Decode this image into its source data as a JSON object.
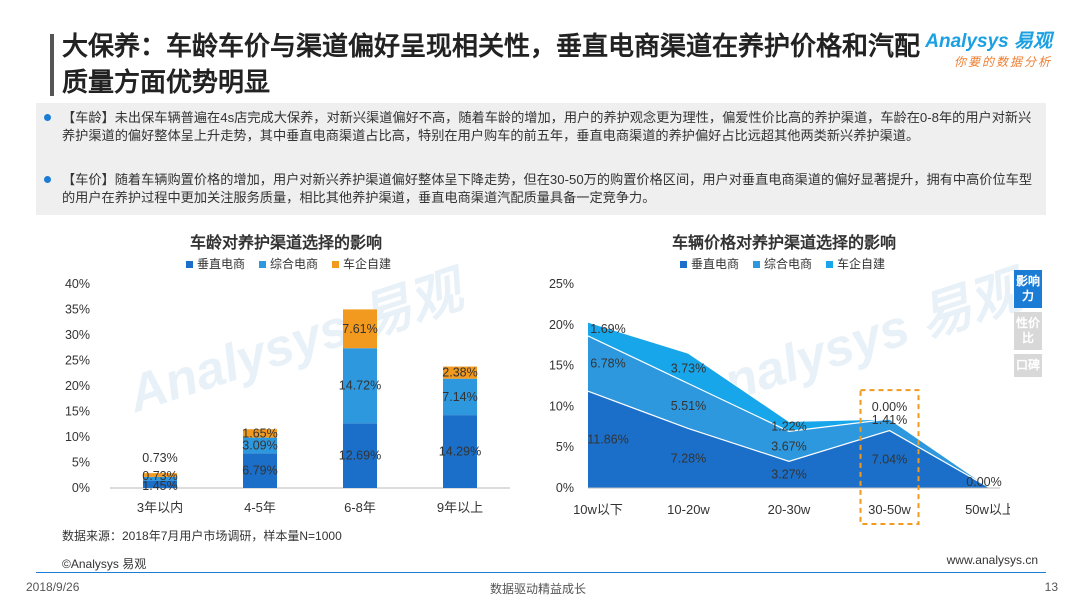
{
  "header": {
    "title": "大保养：车龄车价与渠道偏好呈现相关性，垂直电商渠道在养护价格和汽配质量方面优势明显",
    "logo_main": "Analysys 易观",
    "logo_sub": "你要的数据分析"
  },
  "summary": {
    "bullets": [
      "【车龄】未出保车辆普遍在4s店完成大保养，对新兴渠道偏好不高，随着车龄的增加，用户的养护观念更为理性，偏爱性价比高的养护渠道，车龄在0-8年的用户对新兴养护渠道的偏好整体呈上升走势，其中垂直电商渠道占比高，特别在用户购车的前五年，垂直电商渠道的养护偏好占比远超其他两类新兴养护渠道。",
      "【车价】随着车辆购置价格的增加，用户对新兴养护渠道偏好整体呈下降走势，但在30-50万的购置价格区间，用户对垂直电商渠道的偏好显著提升，拥有中高价位车型的用户在养护过程中更加关注服务质量，相比其他养护渠道，垂直电商渠道汽配质量具备一定竞争力。"
    ]
  },
  "colors": {
    "vertical": "#1b6fc9",
    "comprehensive": "#2e98df",
    "oem": "#f29a1f",
    "area_oem": "#18a6ea",
    "highlight": "#f29a1f"
  },
  "chart_data": [
    {
      "type": "bar",
      "stacked": true,
      "title": "车龄对养护渠道选择的影响",
      "categories": [
        "3年以内",
        "4-5年",
        "6-8年",
        "9年以上"
      ],
      "series": [
        {
          "name": "垂直电商",
          "values": [
            1.45,
            6.79,
            12.69,
            14.29
          ],
          "labels": [
            "1.45%",
            "6.79%",
            "12.69%",
            "14.29%"
          ]
        },
        {
          "name": "综合电商",
          "values": [
            0.73,
            3.09,
            14.72,
            7.14
          ],
          "labels": [
            "0.73%",
            "3.09%",
            "14.72%",
            "7.14%"
          ]
        },
        {
          "name": "车企自建",
          "values": [
            0.73,
            1.65,
            7.61,
            2.38
          ],
          "labels": [
            "0.73%",
            "1.65%",
            "7.61%",
            "2.38%"
          ]
        }
      ],
      "yticks": [
        "0%",
        "5%",
        "10%",
        "15%",
        "20%",
        "25%",
        "30%",
        "35%",
        "40%"
      ],
      "ylim": [
        0,
        40
      ]
    },
    {
      "type": "area",
      "stacked": true,
      "title": "车辆价格对养护渠道选择的影响",
      "categories": [
        "10w以下",
        "10-20w",
        "20-30w",
        "30-50w",
        "50w以上"
      ],
      "series": [
        {
          "name": "垂直电商",
          "values": [
            11.86,
            7.28,
            3.27,
            7.04,
            0
          ],
          "labels": [
            "11.86%",
            "7.28%",
            "3.27%",
            "7.04%",
            "0.00%"
          ]
        },
        {
          "name": "综合电商",
          "values": [
            6.78,
            5.51,
            3.67,
            1.41,
            0
          ],
          "labels": [
            "6.78%",
            "5.51%",
            "3.67%",
            "1.41%",
            ""
          ]
        },
        {
          "name": "车企自建",
          "values": [
            1.69,
            3.73,
            1.22,
            0.0,
            0
          ],
          "labels": [
            "1.69%",
            "3.73%",
            "1.22%",
            "0.00%",
            ""
          ]
        }
      ],
      "yticks": [
        "0%",
        "5%",
        "10%",
        "15%",
        "20%",
        "25%"
      ],
      "ylim": [
        0,
        25
      ],
      "highlight_category": "30-50w"
    }
  ],
  "side_tabs": [
    {
      "label": "影响力",
      "active": true
    },
    {
      "label": "性价比",
      "active": false
    },
    {
      "label": "口碑",
      "active": false
    }
  ],
  "footer": {
    "source": "数据来源：2018年7月用户市场调研，样本量N=1000",
    "copyright": "©Analysys 易观",
    "url": "www.analysys.cn",
    "date": "2018/9/26",
    "slogan": "数据驱动精益成长",
    "page": "13"
  }
}
